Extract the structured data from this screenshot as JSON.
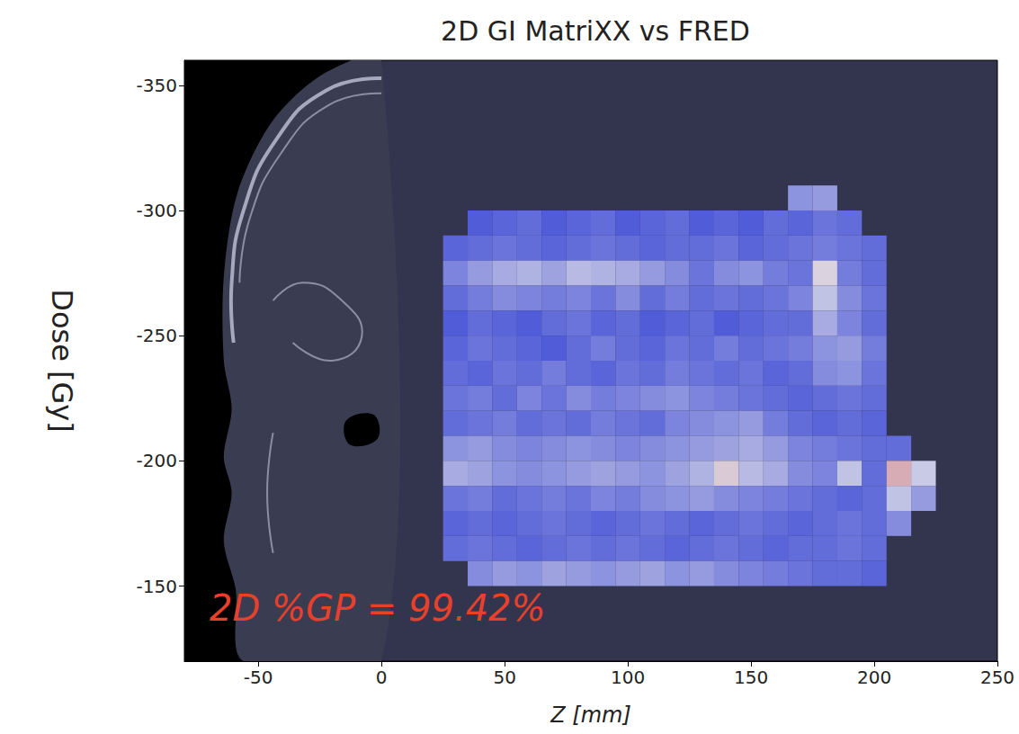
{
  "chart_data": {
    "type": "heatmap",
    "title": "2D GI MatriXX vs FRED",
    "x_label": "Z [mm]",
    "y_label": "Dose [Gy]",
    "annotation": "2D %GP = 99.42%",
    "xlim": [
      -80,
      250
    ],
    "xticks": [
      -50,
      0,
      50,
      100,
      150,
      200,
      250
    ],
    "ylim": [
      -120,
      -360
    ],
    "yticks": [
      -350,
      -300,
      -250,
      -200,
      -150
    ],
    "grid": false,
    "ct_image_xlim": [
      -80,
      0
    ],
    "zlim": [
      0,
      2
    ],
    "cells": {
      "x": [
        30,
        40,
        50,
        60,
        70,
        80,
        90,
        100,
        110,
        120,
        130,
        140,
        150,
        160,
        170,
        180,
        190,
        200,
        210,
        220,
        230
      ],
      "y": [
        -305,
        -295,
        -285,
        -275,
        -265,
        -255,
        -245,
        -235,
        -225,
        -215,
        -205,
        -195,
        -185,
        -175,
        -165,
        -155
      ],
      "values": [
        [
          null,
          null,
          null,
          null,
          null,
          null,
          null,
          null,
          null,
          null,
          null,
          null,
          null,
          null,
          0.55,
          0.6,
          null,
          null,
          null,
          null,
          null
        ],
        [
          null,
          0.2,
          0.25,
          0.3,
          0.2,
          0.25,
          0.3,
          0.2,
          0.25,
          0.3,
          0.2,
          0.25,
          0.2,
          0.3,
          0.25,
          0.35,
          0.3,
          null,
          null,
          null,
          null
        ],
        [
          0.25,
          0.3,
          0.35,
          0.3,
          0.25,
          0.3,
          0.35,
          0.3,
          0.25,
          0.3,
          0.3,
          0.35,
          0.25,
          0.3,
          0.35,
          0.4,
          0.35,
          0.3,
          null,
          null,
          null
        ],
        [
          0.45,
          0.6,
          0.7,
          0.75,
          0.65,
          0.8,
          0.75,
          0.7,
          0.6,
          0.5,
          0.35,
          0.5,
          0.55,
          0.4,
          0.35,
          1.05,
          0.4,
          0.3,
          null,
          null,
          null
        ],
        [
          0.3,
          0.4,
          0.5,
          0.45,
          0.4,
          0.45,
          0.35,
          0.5,
          0.3,
          0.4,
          0.3,
          0.35,
          0.3,
          0.35,
          0.45,
          0.85,
          0.5,
          0.35,
          null,
          null,
          null
        ],
        [
          0.2,
          0.3,
          0.25,
          0.2,
          0.3,
          0.35,
          0.25,
          0.3,
          0.2,
          0.25,
          0.3,
          0.2,
          0.25,
          0.3,
          0.3,
          0.7,
          0.45,
          0.3,
          null,
          null,
          null
        ],
        [
          0.25,
          0.35,
          0.3,
          0.25,
          0.2,
          0.3,
          0.4,
          0.3,
          0.25,
          0.35,
          0.3,
          0.4,
          0.3,
          0.35,
          0.4,
          0.55,
          0.6,
          0.4,
          null,
          null,
          null
        ],
        [
          0.3,
          0.25,
          0.35,
          0.3,
          0.4,
          0.3,
          0.25,
          0.35,
          0.3,
          0.4,
          0.35,
          0.3,
          0.35,
          0.25,
          0.3,
          0.5,
          0.55,
          0.35,
          null,
          null,
          null
        ],
        [
          0.35,
          0.4,
          0.3,
          0.45,
          0.35,
          0.5,
          0.4,
          0.45,
          0.5,
          0.55,
          0.45,
          0.4,
          0.35,
          0.3,
          0.25,
          0.3,
          0.35,
          0.3,
          null,
          null,
          null
        ],
        [
          0.3,
          0.35,
          0.4,
          0.3,
          0.35,
          0.3,
          0.4,
          0.35,
          0.3,
          0.45,
          0.5,
          0.55,
          0.6,
          0.4,
          0.3,
          0.25,
          0.3,
          0.25,
          null,
          null,
          null
        ],
        [
          0.55,
          0.6,
          0.5,
          0.45,
          0.5,
          0.55,
          0.5,
          0.45,
          0.5,
          0.55,
          0.6,
          0.65,
          0.7,
          0.6,
          0.45,
          0.4,
          0.35,
          0.3,
          0.3,
          null,
          null
        ],
        [
          0.7,
          0.65,
          0.55,
          0.5,
          0.55,
          0.6,
          0.65,
          0.6,
          0.55,
          0.65,
          0.75,
          1.1,
          0.8,
          0.7,
          0.5,
          0.45,
          0.85,
          0.3,
          1.3,
          0.9,
          null
        ],
        [
          0.35,
          0.4,
          0.3,
          0.35,
          0.4,
          0.35,
          0.45,
          0.4,
          0.5,
          0.55,
          0.6,
          0.5,
          0.45,
          0.4,
          0.35,
          0.3,
          0.25,
          0.3,
          0.85,
          0.6,
          null
        ],
        [
          0.25,
          0.3,
          0.25,
          0.3,
          0.35,
          0.3,
          0.25,
          0.3,
          0.35,
          0.3,
          0.25,
          0.3,
          0.35,
          0.3,
          0.25,
          0.3,
          0.35,
          0.3,
          0.5,
          null,
          null
        ],
        [
          0.3,
          0.35,
          0.3,
          0.25,
          0.3,
          0.35,
          0.3,
          0.35,
          0.3,
          0.25,
          0.3,
          0.35,
          0.3,
          0.25,
          0.3,
          0.3,
          0.35,
          0.3,
          null,
          null,
          null
        ],
        [
          null,
          0.5,
          0.6,
          0.55,
          0.65,
          0.6,
          0.55,
          0.6,
          0.65,
          0.55,
          0.6,
          0.5,
          0.45,
          0.4,
          0.35,
          0.3,
          0.3,
          0.25,
          null,
          null,
          null
        ]
      ]
    }
  }
}
